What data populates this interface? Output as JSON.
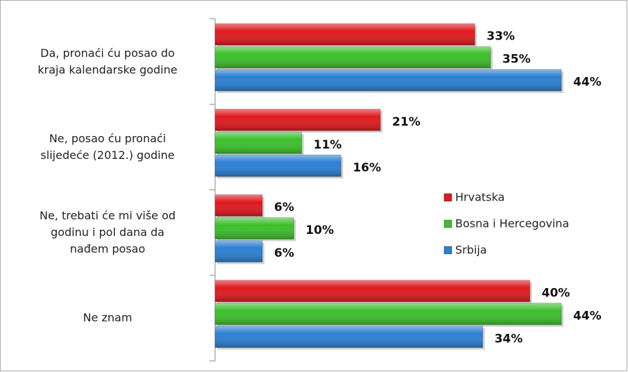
{
  "chart_data": {
    "type": "bar",
    "orientation": "horizontal",
    "categories": [
      "Da, pronaći ću posao do\nkraja kalendarske godine",
      "Ne, posao ću pronaći\nslijedeće (2012.) godine",
      "Ne, trebati će mi više od\ngodinu i pol dana da\nnađem posao",
      "Ne znam"
    ],
    "series": [
      {
        "name": "Hrvatska",
        "color": "#e0191e",
        "values": [
          33,
          21,
          6,
          40
        ],
        "value_labels": [
          "33%",
          "21%",
          "6%",
          "40%"
        ]
      },
      {
        "name": "Bosna i Hercegovina",
        "color": "#3cbf2b",
        "values": [
          35,
          11,
          10,
          44
        ],
        "value_labels": [
          "35%",
          "11%",
          "10%",
          "44%"
        ]
      },
      {
        "name": "Srbija",
        "color": "#2b7fd3",
        "values": [
          44,
          16,
          6,
          34
        ],
        "value_labels": [
          "44%",
          "16%",
          "6%",
          "34%"
        ]
      }
    ],
    "legend": "right"
  }
}
